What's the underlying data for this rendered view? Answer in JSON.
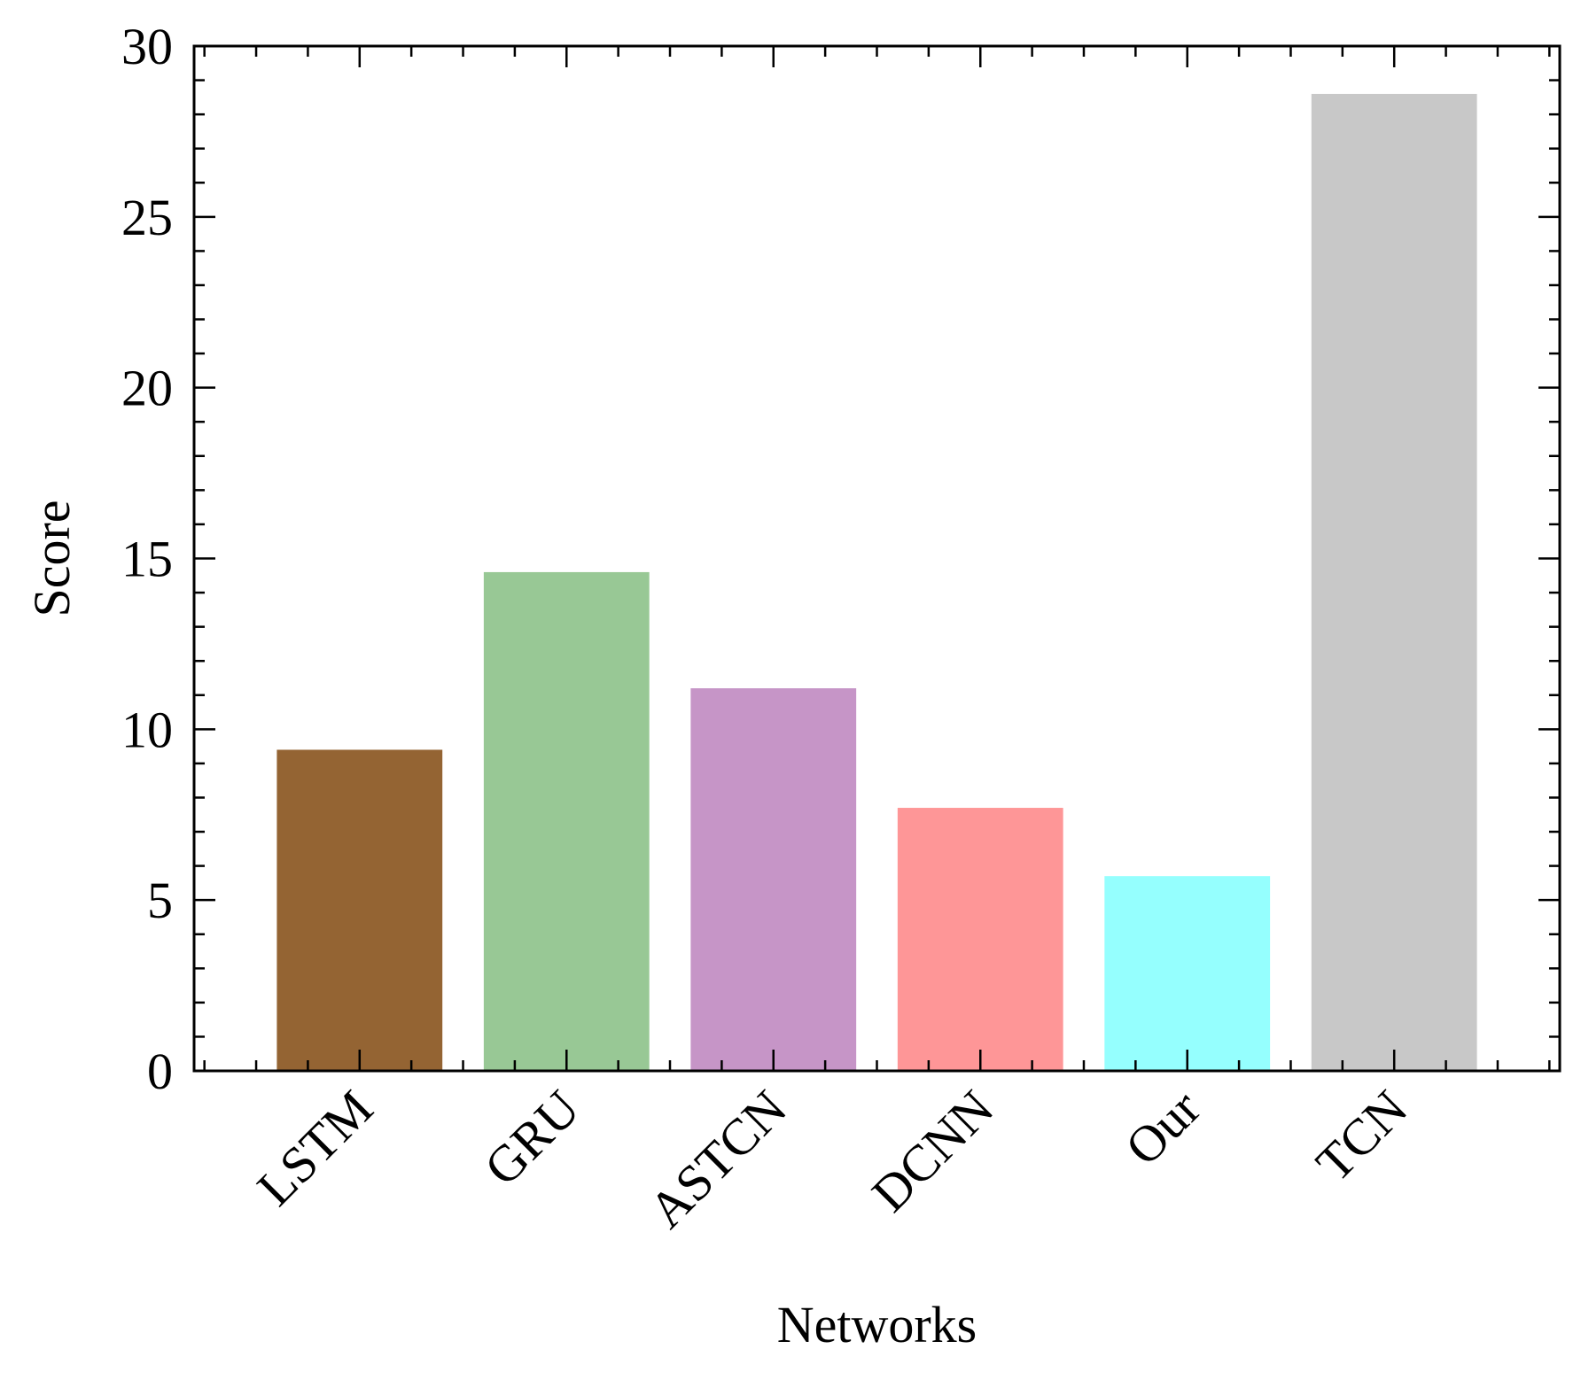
{
  "chart_data": {
    "type": "bar",
    "title": "",
    "xlabel": "Networks",
    "ylabel": "Score",
    "categories": [
      "LSTM",
      "GRU",
      "ASTCN",
      "DCNN",
      "Our",
      "TCN"
    ],
    "values": [
      9.4,
      14.6,
      11.2,
      7.7,
      5.7,
      28.6
    ],
    "colors": [
      "#946433",
      "#98c895",
      "#c695c7",
      "#fe9697",
      "#95fffe",
      "#c8c8c8"
    ],
    "ylim": [
      0,
      30
    ],
    "yticks": [
      0,
      5,
      10,
      15,
      20,
      25,
      30
    ],
    "grid": false,
    "legend": "none"
  }
}
